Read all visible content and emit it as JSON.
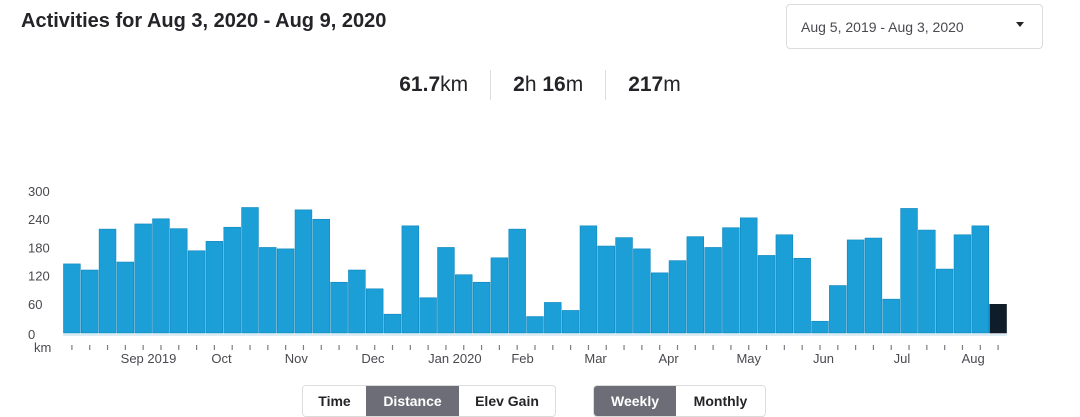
{
  "header": {
    "title": "Activities for Aug 3, 2020 - Aug 9, 2020",
    "date_range": "Aug 5, 2019 - Aug 3, 2020"
  },
  "stats": [
    {
      "value": "61.7",
      "unit": "km"
    },
    {
      "value_h": "2",
      "unit_h": "h",
      "value_m": "16",
      "unit_m": "m"
    },
    {
      "value": "217",
      "unit": "m"
    }
  ],
  "metric_toggle": {
    "options": [
      "Time",
      "Distance",
      "Elev Gain"
    ],
    "active": "Distance"
  },
  "period_toggle": {
    "options": [
      "Weekly",
      "Monthly"
    ],
    "active": "Weekly"
  },
  "colors": {
    "bar": "#1c9fd6",
    "bar_dark": "#0d7db3",
    "selected": "#0f1d2a",
    "active_toggle": "#6d6d78"
  },
  "chart_data": {
    "type": "bar",
    "ylabel": "km",
    "y_ticks": [
      "300",
      "240",
      "180",
      "120",
      "60",
      "0"
    ],
    "ylim": [
      0,
      300
    ],
    "month_labels": [
      "Sep 2019",
      "Oct",
      "Nov",
      "Dec",
      "Jan 2020",
      "Feb",
      "Mar",
      "Apr",
      "May",
      "Jun",
      "Jul",
      "Aug"
    ],
    "values": [
      147,
      134,
      221,
      151,
      232,
      243,
      222,
      175,
      195,
      225,
      267,
      182,
      179,
      262,
      242,
      108,
      134,
      94,
      40,
      228,
      75,
      182,
      124,
      108,
      160,
      221,
      35,
      65,
      48,
      228,
      185,
      203,
      179,
      128,
      154,
      205,
      182,
      224,
      245,
      165,
      209,
      159,
      25,
      101,
      198,
      202,
      72,
      265,
      219,
      136,
      209,
      228,
      61
    ],
    "selected_index": 52
  }
}
